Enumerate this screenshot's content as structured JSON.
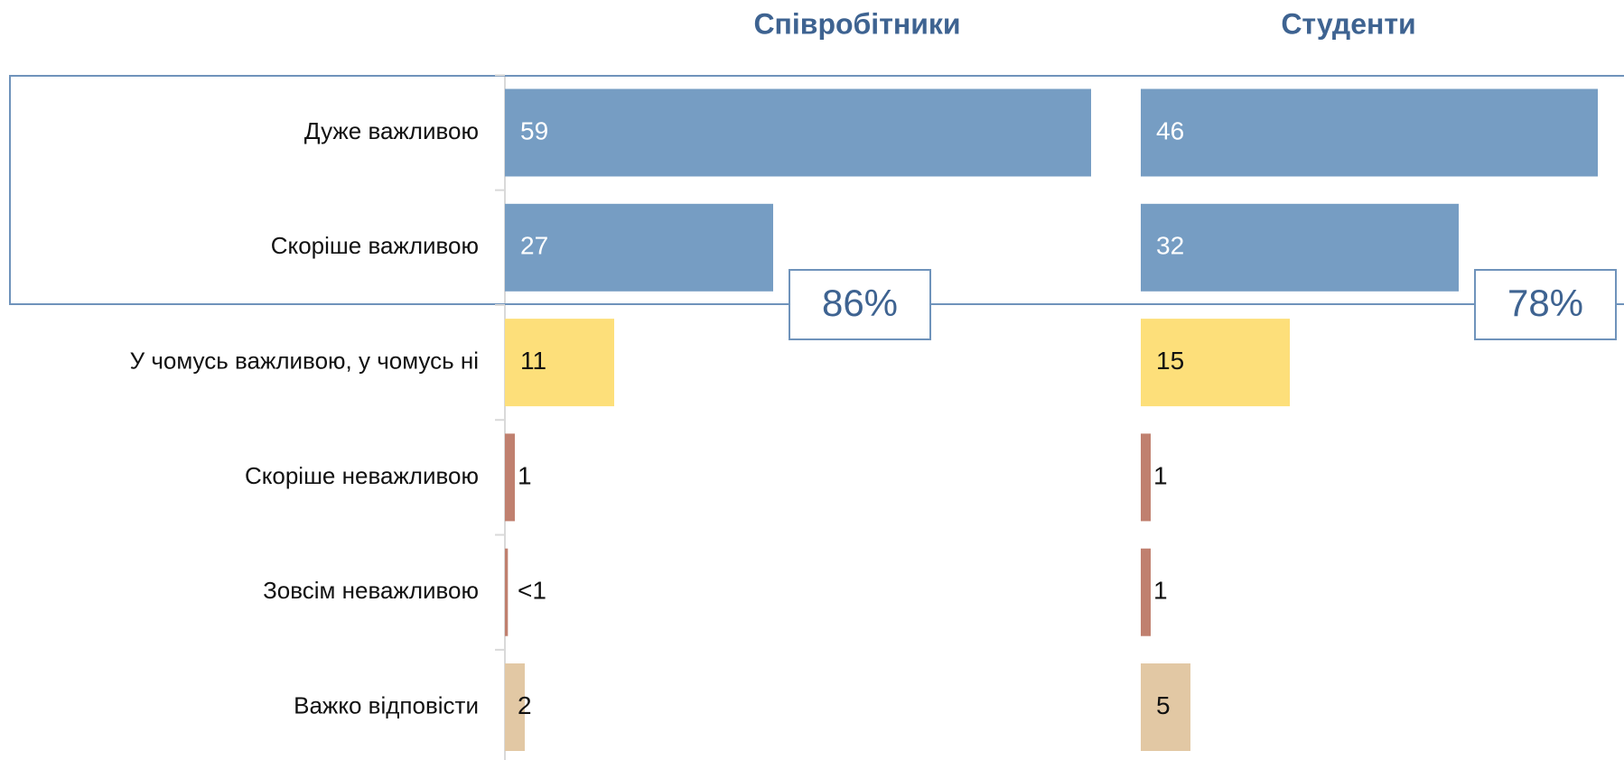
{
  "chart_data": {
    "type": "bar",
    "orientation": "horizontal",
    "categories": [
      "Дуже важливою",
      "Скоріше важливою",
      "У чомусь важливою, у чомусь ні",
      "Скоріше неважливою",
      "Зовсім неважливою",
      "Важко відповісти"
    ],
    "colors": [
      "#769dc3",
      "#769dc3",
      "#fddf7a",
      "#c0806f",
      "#c0806f",
      "#e2c8a4"
    ],
    "series": [
      {
        "name": "Співробітники",
        "values": [
          59,
          27,
          11,
          1,
          0.3,
          2
        ],
        "value_labels": [
          "59",
          "27",
          "11",
          "1",
          "<1",
          "2"
        ],
        "total_label": "86%"
      },
      {
        "name": "Студенти",
        "values": [
          46,
          32,
          15,
          1,
          1,
          5
        ],
        "value_labels": [
          "46",
          "32",
          "15",
          "1",
          "1",
          "5"
        ],
        "total_label": "78%"
      }
    ],
    "xlim": [
      0,
      60
    ]
  }
}
